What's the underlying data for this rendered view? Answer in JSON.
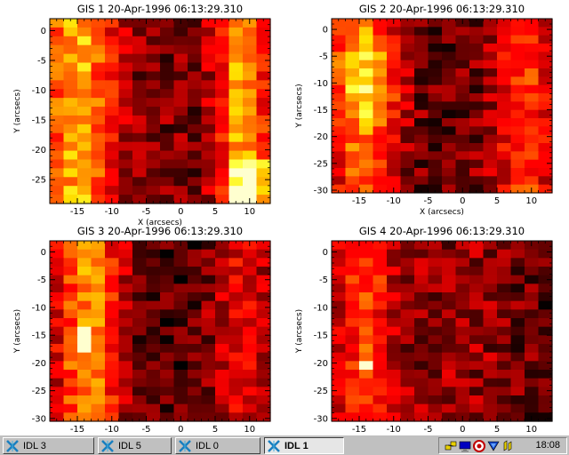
{
  "plots": [
    {
      "title": "GIS 1 20-Apr-1996 06:13:29.310",
      "xlabel": "X (arcsecs)",
      "ylabel": "Y (arcsecs)",
      "xticks": [
        "-15",
        "-10",
        "-5",
        "0",
        "5",
        "10"
      ],
      "yticks": [
        "0",
        "-5",
        "-10",
        "-15",
        "-20",
        "-25"
      ]
    },
    {
      "title": "GIS 2 20-Apr-1996 06:13:29.310",
      "xlabel": "X (arcsecs)",
      "ylabel": "Y (arcsecs)",
      "xticks": [
        "-15",
        "-10",
        "-5",
        "0",
        "5",
        "10"
      ],
      "yticks": [
        "0",
        "-5",
        "-10",
        "-15",
        "-20",
        "-25",
        "-30"
      ]
    },
    {
      "title": "GIS 3 20-Apr-1996 06:13:29.310",
      "xlabel": "",
      "ylabel": "Y (arcsecs)",
      "xticks": [
        "-15",
        "-10",
        "-5",
        "0",
        "5",
        "10"
      ],
      "yticks": [
        "0",
        "-5",
        "-10",
        "-15",
        "-20",
        "-25",
        "-30"
      ]
    },
    {
      "title": "GIS 4 20-Apr-1996 06:13:29.310",
      "xlabel": "",
      "ylabel": "Y (arcsecs)",
      "xticks": [
        "-15",
        "-10",
        "-5",
        "0",
        "5",
        "10"
      ],
      "yticks": [
        "0",
        "-5",
        "-10",
        "-15",
        "-20",
        "-25",
        "-30"
      ]
    }
  ],
  "taskbar": {
    "buttons": [
      {
        "label": "IDL 3",
        "active": false
      },
      {
        "label": "IDL 5",
        "active": false
      },
      {
        "label": "IDL 0",
        "active": false
      },
      {
        "label": "IDL 1",
        "active": true
      }
    ],
    "tray_icons": [
      "network-icon",
      "display-icon",
      "antivirus-icon",
      "volume-icon",
      "pen-icon"
    ],
    "clock": "18:08"
  }
}
